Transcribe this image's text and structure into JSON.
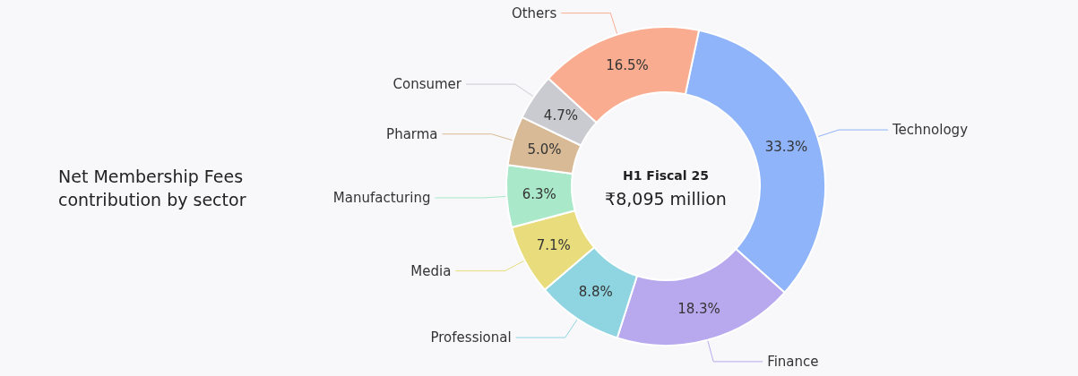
{
  "chart_data": {
    "type": "donut",
    "title": "Net Membership Fees contribution by sector",
    "categories": [
      "Technology",
      "Finance",
      "Professional",
      "Media",
      "Manufacturing",
      "Pharma",
      "Consumer",
      "Others"
    ],
    "values": [
      33.3,
      18.3,
      8.8,
      7.1,
      6.3,
      5.0,
      4.7,
      16.5
    ],
    "value_labels": [
      "33.3%",
      "18.3%",
      "8.8%",
      "7.1%",
      "6.3%",
      "5.0%",
      "4.7%",
      "16.5%"
    ],
    "colors": [
      "#8fb4f9",
      "#b8a9ef",
      "#8fd4e1",
      "#e9dc7c",
      "#a9e8c9",
      "#d8ba96",
      "#cacad1",
      "#faac90"
    ],
    "annotations": [
      "H1 Fiscal 25",
      "₹8,095 million"
    ],
    "legend": false
  }
}
